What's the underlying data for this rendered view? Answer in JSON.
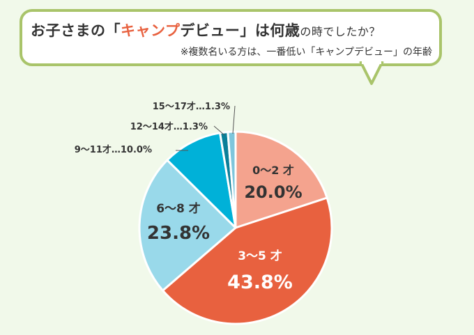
{
  "header": {
    "title_part1": "お子さまの「",
    "title_highlight": "キャンプ",
    "title_part2": "デビュー」は何歳",
    "title_part3": "の時でしたか？",
    "subtitle": "※複数名いる方は、一番低い「キャンプデビュー」の年齢"
  },
  "colors": {
    "background": "#f1f9ea",
    "bubble_border": "#a9c46a",
    "highlight": "#e8613f"
  },
  "chart_data": {
    "type": "pie",
    "unit": "%",
    "slices": [
      {
        "label": "0～2 才",
        "value": 20.0,
        "color": "#f4a38e",
        "text_color": "#333333",
        "style": "inside"
      },
      {
        "label": "3～5 才",
        "value": 43.8,
        "color": "#e8613f",
        "text_color": "#ffffff",
        "style": "inside"
      },
      {
        "label": "6～8 才",
        "value": 23.8,
        "color": "#99d9ea",
        "text_color": "#333333",
        "style": "inside"
      },
      {
        "label": "9～11才…10.0%",
        "value": 10.0,
        "color": "#00b1d8",
        "text_color": "#333333",
        "style": "callout"
      },
      {
        "label": "12～14才…1.3%",
        "value": 1.3,
        "color": "#0b7f99",
        "text_color": "#333333",
        "style": "callout"
      },
      {
        "label": "15～17才…1.3%",
        "value": 1.3,
        "color": "#7ec6dc",
        "text_color": "#333333",
        "style": "callout"
      }
    ]
  }
}
